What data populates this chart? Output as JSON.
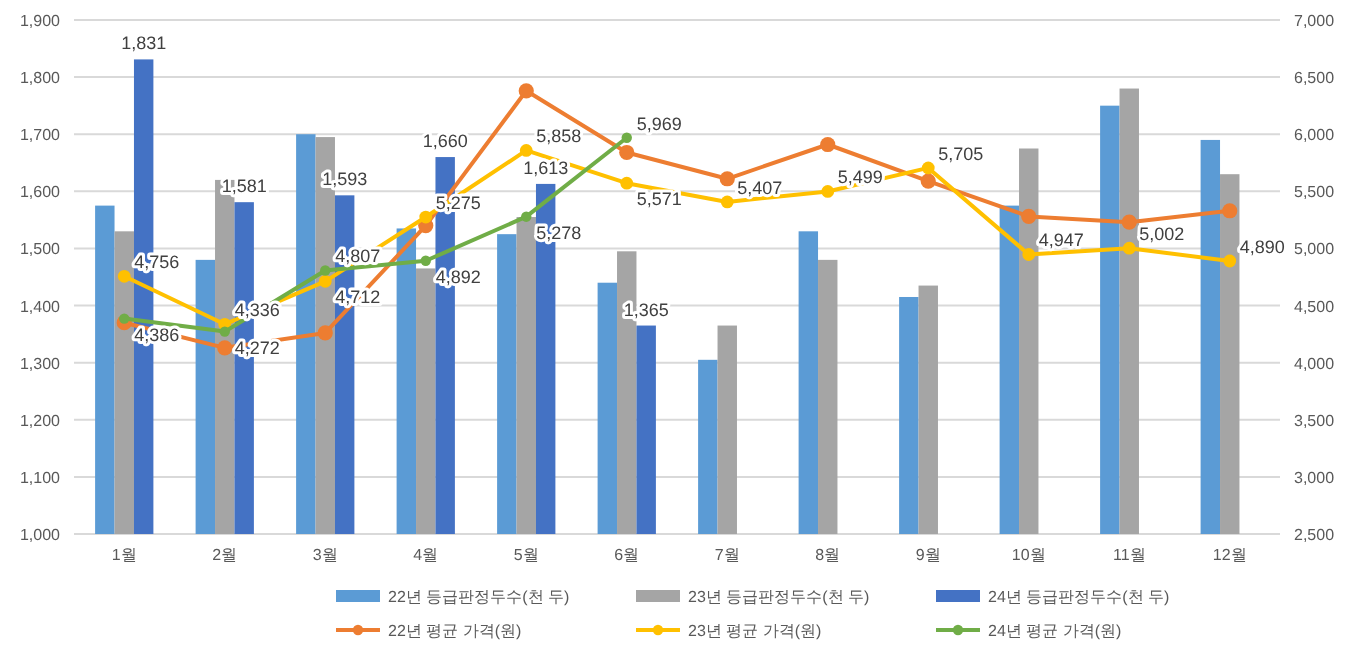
{
  "chart_data": {
    "type": "bar",
    "categories": [
      "1월",
      "2월",
      "3월",
      "4월",
      "5월",
      "6월",
      "7월",
      "8월",
      "9월",
      "10월",
      "11월",
      "12월"
    ],
    "series": [
      {
        "name": "22년 등급판정두수(천 두)",
        "color": "#5b9bd5",
        "values": [
          1575,
          1480,
          1700,
          1535,
          1525,
          1440,
          1305,
          1530,
          1415,
          1575,
          1750,
          1690
        ]
      },
      {
        "name": "23년 등급판정두수(천 두)",
        "color": "#a5a5a5",
        "values": [
          1530,
          1620,
          1695,
          1465,
          1555,
          1495,
          1365,
          1480,
          1435,
          1675,
          1780,
          1630
        ]
      },
      {
        "name": "24년 등급판정두수(천 두)",
        "color": "#4472c4",
        "values": [
          1831,
          1581,
          1593,
          1660,
          1613,
          1365,
          null,
          null,
          null,
          null,
          null,
          null
        ],
        "value_labels": [
          "1,831",
          "1,581",
          "1,593",
          "1,660",
          "1,613",
          "1,365",
          null,
          null,
          null,
          null,
          null,
          null
        ]
      },
      {
        "name": "22년 평균 가격(원)",
        "type": "line",
        "axis": "y2",
        "color": "#ed7d31",
        "values": [
          4350,
          4130,
          4260,
          5200,
          6380,
          5840,
          5610,
          5910,
          5590,
          5280,
          5230,
          5330
        ]
      },
      {
        "name": "23년 평균 가격(원)",
        "type": "line",
        "axis": "y2",
        "color": "#ffc000",
        "values": [
          4756,
          4336,
          4712,
          5275,
          5858,
          5571,
          5407,
          5499,
          5705,
          4947,
          5002,
          4890
        ],
        "value_labels": [
          "4,756",
          "4,336",
          "4,712",
          "5,275",
          "5,858",
          "5,571",
          "5,407",
          "5,499",
          "5,705",
          "4,947",
          "5,002",
          "4,890"
        ]
      },
      {
        "name": "24년 평균 가격(원)",
        "type": "line",
        "axis": "y2",
        "color": "#70ad47",
        "values": [
          4386,
          4272,
          4807,
          4892,
          5278,
          5969,
          null,
          null,
          null,
          null,
          null,
          null
        ],
        "value_labels": [
          "4,386",
          "4,272",
          "4,807",
          "4,892",
          "5,278",
          "5,969",
          null,
          null,
          null,
          null,
          null,
          null
        ]
      }
    ],
    "ylim": [
      1000,
      1900
    ],
    "yticks": [
      {
        "value": 1000,
        "label": "1,000"
      },
      {
        "value": 1100,
        "label": "1,100"
      },
      {
        "value": 1200,
        "label": "1,200"
      },
      {
        "value": 1300,
        "label": "1,300"
      },
      {
        "value": 1400,
        "label": "1,400"
      },
      {
        "value": 1500,
        "label": "1,500"
      },
      {
        "value": 1600,
        "label": "1,600"
      },
      {
        "value": 1700,
        "label": "1,700"
      },
      {
        "value": 1800,
        "label": "1,800"
      },
      {
        "value": 1900,
        "label": "1,900"
      }
    ],
    "y2lim": [
      2500,
      7000
    ],
    "y2ticks": [
      {
        "value": 2500,
        "label": "2,500"
      },
      {
        "value": 3000,
        "label": "3,000"
      },
      {
        "value": 3500,
        "label": "3,500"
      },
      {
        "value": 4000,
        "label": "4,000"
      },
      {
        "value": 4500,
        "label": "4,500"
      },
      {
        "value": 5000,
        "label": "5,000"
      },
      {
        "value": 5500,
        "label": "5,500"
      },
      {
        "value": 6000,
        "label": "6,000"
      },
      {
        "value": 6500,
        "label": "6,500"
      },
      {
        "value": 7000,
        "label": "7,000"
      }
    ],
    "grid": "y",
    "legend": "bottom",
    "marker": "circle"
  }
}
